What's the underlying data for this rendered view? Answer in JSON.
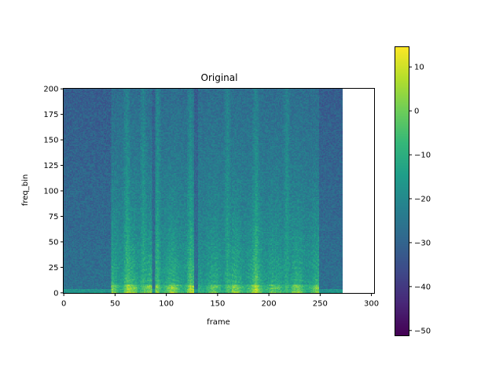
{
  "chart_data": {
    "type": "heatmap",
    "title": "Original",
    "xlabel": "frame",
    "ylabel": "freq_bin",
    "xlim": [
      -0.5,
      303
    ],
    "ylim": [
      -0.5,
      200.5
    ],
    "n_frames": 273,
    "n_freq_bins": 201,
    "xticks": [
      0,
      50,
      100,
      150,
      200,
      250,
      300
    ],
    "yticks": [
      0,
      25,
      50,
      75,
      100,
      125,
      150,
      175,
      200
    ],
    "colormap": "viridis",
    "colorbar": {
      "range": [
        -51.2,
        14.6
      ],
      "ticks": [
        10,
        0,
        -10,
        -20,
        -30,
        -40,
        -50
      ],
      "tick_labels": [
        "10",
        "0",
        "−10",
        "−20",
        "−30",
        "−40",
        "−50"
      ]
    },
    "grid": false,
    "speech_segments": [
      {
        "frames": [
          47,
          87
        ],
        "level": 1.0
      },
      {
        "frames": [
          90,
          128
        ],
        "level": 1.0
      },
      {
        "frames": [
          132,
          165
        ],
        "level": 0.8
      },
      {
        "frames": [
          165,
          205
        ],
        "level": 1.0
      },
      {
        "frames": [
          205,
          222
        ],
        "level": 0.75
      },
      {
        "frames": [
          222,
          250
        ],
        "level": 0.9
      }
    ],
    "bright_columns": [
      62,
      78,
      92,
      124,
      160,
      188,
      218
    ]
  }
}
